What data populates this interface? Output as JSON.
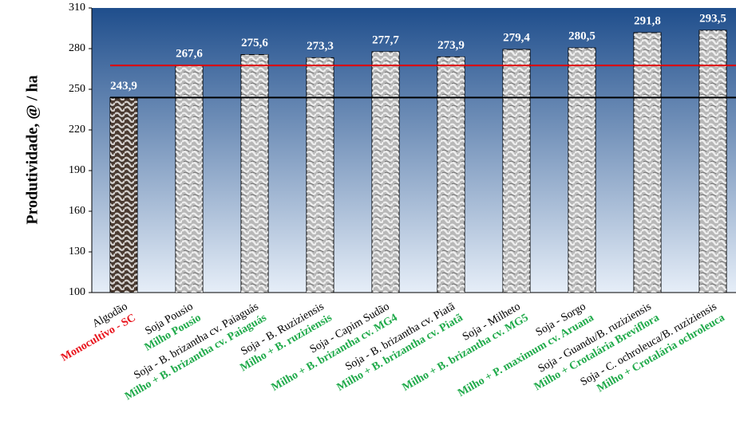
{
  "chart_data": {
    "type": "bar",
    "y_label": "Produtividade, @ / ha",
    "categories": [
      "Algodão",
      "Soja Pousio",
      "Soja - B. brizantha cv. Paiaguás",
      "Soja - B. Ruziziensis",
      "Soja - Capim Sudão",
      "Soja - B. brizantha cv. Piatã",
      "Soja - Milheto",
      "Soja - Sorgo",
      "Soja - Guandu/B. ruziziensis",
      "Soja - C. ochroleuca/B. ruziziensis"
    ],
    "category_subtitles": [
      "Monocultivo - SC",
      "Milho Pousio",
      "Milho + B. brizantha cv. Paiaguás",
      "Milho + B. ruziziensis",
      "Milho + B. brizantha cv. MG4",
      "Milho + B. brizantha cv. Piatã",
      "Milho + B. brizantha cv. MG5",
      "Milho + P. maximum cv. Aruana",
      "Milho + Crotalária Breviflora",
      "Milho + Crotalária ochroleuca"
    ],
    "subtitle_colors": [
      "#e8141c",
      "#1faa4a",
      "#1faa4a",
      "#1faa4a",
      "#1faa4a",
      "#1faa4a",
      "#1faa4a",
      "#1faa4a",
      "#1faa4a",
      "#1faa4a"
    ],
    "values": [
      243.9,
      267.6,
      275.6,
      273.3,
      277.7,
      273.9,
      279.4,
      280.5,
      291.8,
      293.5
    ],
    "value_labels": [
      "243,9",
      "267,6",
      "275,6",
      "273,3",
      "277,7",
      "273,9",
      "279,4",
      "280,5",
      "291,8",
      "293,5"
    ],
    "bar_colors": [
      "#4a3a30",
      "#b8b8b8",
      "#b8b8b8",
      "#b8b8b8",
      "#b8b8b8",
      "#b8b8b8",
      "#b8b8b8",
      "#b8b8b8",
      "#b8b8b8",
      "#b8b8b8"
    ],
    "reference_lines": [
      {
        "value": 267.6,
        "color": "#e00000"
      },
      {
        "value": 243.9,
        "color": "#000000"
      }
    ],
    "ylim": [
      100,
      310
    ],
    "yticks": [
      100,
      130,
      160,
      190,
      220,
      250,
      280,
      310
    ]
  }
}
